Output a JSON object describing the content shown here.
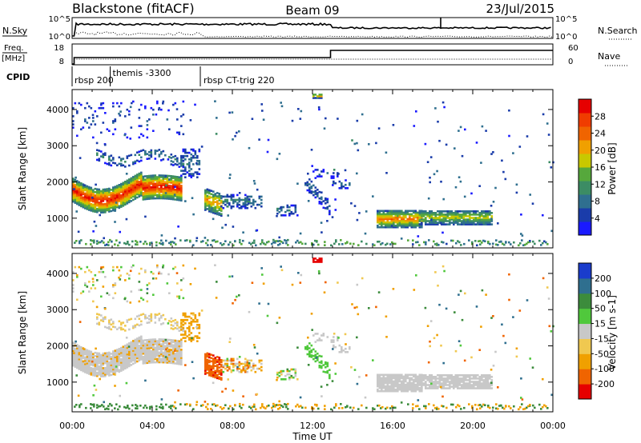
{
  "header": {
    "station": "Blackstone (fitACF)",
    "beam": "Beam 09",
    "date": "23/Jul/2015"
  },
  "top_panels": {
    "nsky_label": "N.Sky",
    "nsky_ticks": [
      "10^5",
      "10^0"
    ],
    "nsearch_label": "N.Search",
    "nsearch_ticks": [
      "10^5",
      "10^0"
    ],
    "freq_label": "Freq.",
    "freq_unit": "[MHz]",
    "freq_ticks": [
      "18",
      "8"
    ],
    "nave_label": "Nave",
    "nave_ticks": [
      "60",
      "0"
    ],
    "cpid_label": "CPID",
    "cpid_segments": [
      {
        "label": "rbsp 200",
        "start_h": 0.0
      },
      {
        "label": "themis -3300",
        "start_h": 1.9
      },
      {
        "label": "rbsp CT-trig 220",
        "start_h": 6.4
      }
    ],
    "freq_step_h": 12.9
  },
  "colors": {
    "power": [
      "#1a1aff",
      "#1a3caa",
      "#2f6f8f",
      "#3c8c64",
      "#56a83c",
      "#c8c800",
      "#f0a000",
      "#f06400",
      "#f03c00",
      "#e60000"
    ],
    "velocity": [
      "#e60000",
      "#f06400",
      "#f0a000",
      "#f0c850",
      "#c8c8c8",
      "#50c83c",
      "#3c8c3c",
      "#2f6f8f",
      "#1a3ccc"
    ]
  },
  "chart_data": [
    {
      "type": "heatmap",
      "name": "power",
      "ylabel": "Slant Range [km]",
      "xlabel": "Time UT",
      "xlim": [
        0,
        24
      ],
      "ylim": [
        180,
        4550
      ],
      "x_ticks": [
        "00:00",
        "04:00",
        "08:00",
        "12:00",
        "16:00",
        "20:00",
        "00:00"
      ],
      "y_ticks": [
        1000,
        2000,
        3000,
        4000
      ],
      "colorbar_label": "Power [dB]",
      "colorbar_ticks": [
        "4",
        "8",
        "12",
        "16",
        "20",
        "24",
        "28"
      ],
      "colorbar_range": [
        0,
        32
      ]
    },
    {
      "type": "heatmap",
      "name": "velocity",
      "ylabel": "Slant Range [km]",
      "xlabel": "Time UT",
      "xlim": [
        0,
        24
      ],
      "ylim": [
        180,
        4550
      ],
      "x_ticks": [
        "00:00",
        "04:00",
        "08:00",
        "12:00",
        "16:00",
        "20:00",
        "00:00"
      ],
      "y_ticks": [
        1000,
        2000,
        3000,
        4000
      ],
      "colorbar_label": "Velocity [m s-1]",
      "colorbar_ticks": [
        "-200",
        "-100",
        "-50",
        "-15",
        "15",
        "50",
        "100",
        "200"
      ],
      "colorbar_range": [
        -250,
        250
      ]
    }
  ],
  "x_axis_title": "Time UT"
}
